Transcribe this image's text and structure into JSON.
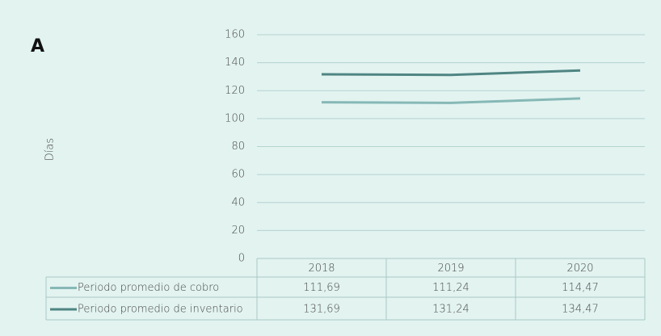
{
  "chart_data": {
    "type": "line",
    "label": "A",
    "y_label": "Días",
    "categories": [
      "2018",
      "2019",
      "2020"
    ],
    "series": [
      {
        "name": "Periodo promedio de cobro",
        "color": "#86b8b6",
        "values": [
          111.69,
          111.24,
          114.47
        ],
        "value_labels": [
          "111,69",
          "111,24",
          "114,47"
        ]
      },
      {
        "name": "Periodo promedio de inventario",
        "color": "#4f8583",
        "values": [
          131.69,
          131.24,
          134.47
        ],
        "value_labels": [
          "131,69",
          "131,24",
          "134,47"
        ]
      }
    ],
    "ylim": [
      0,
      160
    ],
    "yticks": [
      0,
      20,
      40,
      60,
      80,
      100,
      120,
      140,
      160
    ],
    "grid": true
  }
}
